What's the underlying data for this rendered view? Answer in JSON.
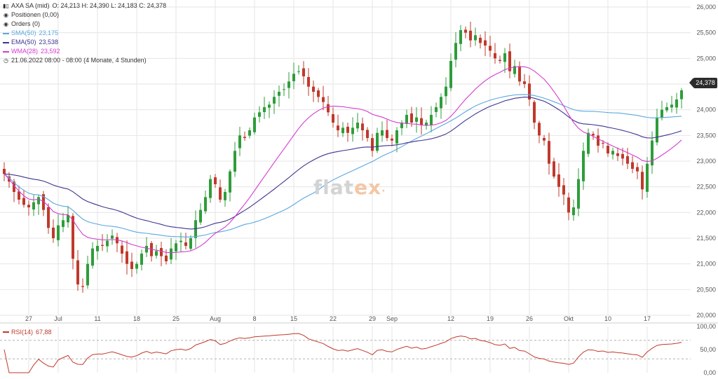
{
  "header": {
    "instrument": "AXA SA (mid)",
    "ohlc": "O: 24,213  H: 24,390  L: 24,183  C: 24,378",
    "positions": "Positionen (0,00)",
    "orders": "Orders (0)",
    "period": "21.06.2022 08:00 - 08:00  (4 Monate, 4 Stunden)"
  },
  "legend": [
    {
      "key": "sma",
      "name": "SMA(50)",
      "value": "23,175",
      "color": "#5aa7df"
    },
    {
      "key": "ema",
      "name": "EMA(50)",
      "value": "23,538",
      "color": "#3d3490"
    },
    {
      "key": "wma",
      "name": "WMA(28)",
      "value": "23,592",
      "color": "#d63bcf"
    }
  ],
  "watermark": {
    "part1": "flat",
    "part2": "ex",
    "dot": "·"
  },
  "last_price_tag": "24,378",
  "icons": {
    "header": "candlestick-icon",
    "positions": "dot-icon",
    "orders": "dot-icon",
    "period": "clock-icon"
  },
  "colors": {
    "up": "#2e9d3a",
    "down": "#c0392b",
    "grid": "#e6e6e6",
    "rsi": "#c0392b",
    "text": "#333333"
  },
  "rsi": {
    "label": "RSI(14)",
    "value": "67,88"
  },
  "chart_data": [
    {
      "type": "candlestick",
      "title": "AXA SA (mid)",
      "ylim": [
        20,
        26
      ],
      "y_ticks": [
        "20,000",
        "20,500",
        "21,000",
        "21,500",
        "22,000",
        "22,500",
        "23,000",
        "23,500",
        "24,000",
        "24,500",
        "25,000",
        "25,500",
        "26,000"
      ],
      "x_tick_labels": [
        {
          "i": 5,
          "label": "27"
        },
        {
          "i": 11,
          "label": "Jul"
        },
        {
          "i": 19,
          "label": "11"
        },
        {
          "i": 27,
          "label": "18"
        },
        {
          "i": 35,
          "label": "25"
        },
        {
          "i": 43,
          "label": "Aug"
        },
        {
          "i": 51,
          "label": "8"
        },
        {
          "i": 59,
          "label": "15"
        },
        {
          "i": 67,
          "label": "22"
        },
        {
          "i": 75,
          "label": "29"
        },
        {
          "i": 79,
          "label": "Sep"
        },
        {
          "i": 91,
          "label": "12"
        },
        {
          "i": 99,
          "label": "19"
        },
        {
          "i": 107,
          "label": "26"
        },
        {
          "i": 115,
          "label": "Okt"
        },
        {
          "i": 123,
          "label": "10"
        },
        {
          "i": 131,
          "label": "17"
        }
      ],
      "closes": [
        22.75,
        22.6,
        22.4,
        22.25,
        22.15,
        22.1,
        22.2,
        22.3,
        22.05,
        21.7,
        21.5,
        21.75,
        21.85,
        21.95,
        21.1,
        20.6,
        20.55,
        21.0,
        21.3,
        21.35,
        21.35,
        21.45,
        21.55,
        21.4,
        21.2,
        21.0,
        20.9,
        21.0,
        21.2,
        21.35,
        21.15,
        21.25,
        21.15,
        21.05,
        21.3,
        21.4,
        21.45,
        21.35,
        21.5,
        21.85,
        22.05,
        22.3,
        22.65,
        22.55,
        22.25,
        22.4,
        22.8,
        23.2,
        23.5,
        23.45,
        23.6,
        23.85,
        23.95,
        24.05,
        24.1,
        24.25,
        24.35,
        24.4,
        24.55,
        24.7,
        24.75,
        24.65,
        24.45,
        24.35,
        24.25,
        24.15,
        23.95,
        23.75,
        23.6,
        23.65,
        23.55,
        23.65,
        23.75,
        23.6,
        23.45,
        23.2,
        23.55,
        23.6,
        23.45,
        23.4,
        23.6,
        23.75,
        23.9,
        23.75,
        23.85,
        23.7,
        23.75,
        23.9,
        24.05,
        24.25,
        24.45,
        24.95,
        25.3,
        25.55,
        25.5,
        25.35,
        25.45,
        25.3,
        25.25,
        25.15,
        25.0,
        24.95,
        25.1,
        24.75,
        24.85,
        24.55,
        24.5,
        24.2,
        23.75,
        23.5,
        23.4,
        22.95,
        22.7,
        22.5,
        22.35,
        22.0,
        22.1,
        22.65,
        23.2,
        23.55,
        23.5,
        23.3,
        23.35,
        23.15,
        23.2,
        23.1,
        23.05,
        22.95,
        22.85,
        22.8,
        22.45,
        22.95,
        23.4,
        23.85,
        24.0,
        24.05,
        24.1,
        24.2,
        24.378
      ],
      "series": [
        {
          "name": "SMA(50)",
          "last": 23.175
        },
        {
          "name": "EMA(50)",
          "last": 23.538
        },
        {
          "name": "WMA(28)",
          "last": 23.592
        }
      ]
    },
    {
      "type": "line",
      "title": "RSI(14)",
      "ylim": [
        0,
        100
      ],
      "y_ticks": [
        "0,00",
        "50,00",
        "100,00"
      ],
      "bands": [
        30,
        70
      ]
    }
  ]
}
